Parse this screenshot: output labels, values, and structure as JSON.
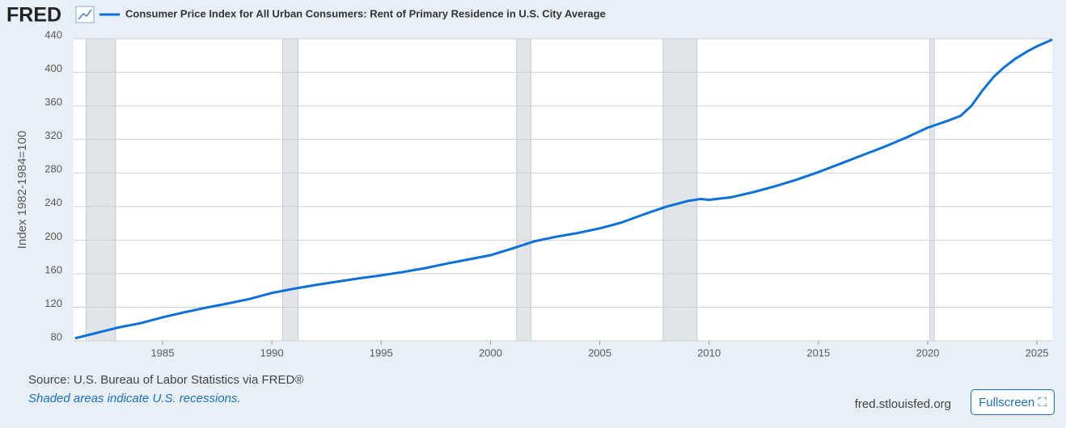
{
  "logo": "FRED",
  "chart_data": {
    "type": "line",
    "y_label": "Index 1982-1984=100",
    "x": [
      1981.0,
      1982.0,
      1983.0,
      1984.0,
      1985.0,
      1986.0,
      1987.0,
      1988.0,
      1989.0,
      1990.0,
      1991.0,
      1992.0,
      1993.0,
      1994.0,
      1995.0,
      1996.0,
      1997.0,
      1998.0,
      1999.0,
      2000.0,
      2001.0,
      2002.0,
      2003.0,
      2004.0,
      2005.0,
      2006.0,
      2007.0,
      2008.0,
      2009.0,
      2009.6,
      2010.0,
      2011.0,
      2012.0,
      2013.0,
      2014.0,
      2015.0,
      2016.0,
      2017.0,
      2018.0,
      2019.0,
      2020.0,
      2021.0,
      2021.5,
      2022.0,
      2022.5,
      2023.0,
      2023.5,
      2024.0,
      2024.5,
      2025.0,
      2025.7
    ],
    "series": [
      {
        "name": "Consumer Price Index for All Urban Consumers: Rent of Primary Residence in U.S. City Average",
        "color": "#0b6fdc",
        "values": [
          83,
          89.5,
          96,
          101,
          108,
          114,
          119.5,
          124.5,
          130,
          137,
          142,
          146.5,
          150.5,
          154.5,
          158,
          162,
          166.5,
          172,
          177,
          182,
          190,
          198.5,
          204,
          208.5,
          214,
          221,
          230.5,
          239.5,
          246.5,
          249,
          248,
          251,
          257,
          264,
          272,
          281,
          291,
          301,
          311,
          322,
          334,
          343,
          348,
          360,
          378,
          394,
          406,
          416,
          424,
          431,
          439
        ]
      }
    ],
    "recessions": [
      [
        1981.5,
        1982.85
      ],
      [
        1990.5,
        1991.2
      ],
      [
        2001.2,
        2001.85
      ],
      [
        2007.9,
        2009.45
      ],
      [
        2020.1,
        2020.3
      ]
    ],
    "recession_color": "#e1e5ea",
    "xlim": [
      1980.93,
      2025.7
    ],
    "xticks": [
      1985,
      1990,
      1995,
      2000,
      2005,
      2010,
      2015,
      2020,
      2025
    ],
    "ylim": [
      80,
      440
    ],
    "yticks": [
      80,
      120,
      160,
      200,
      240,
      280,
      320,
      360,
      400,
      440
    ],
    "grid": true
  },
  "source": "Source: U.S. Bureau of Labor Statistics via FRED®",
  "note": "Shaded areas indicate U.S. recessions.",
  "site": "fred.stlouisfed.org",
  "fullscreen": "Fullscreen"
}
